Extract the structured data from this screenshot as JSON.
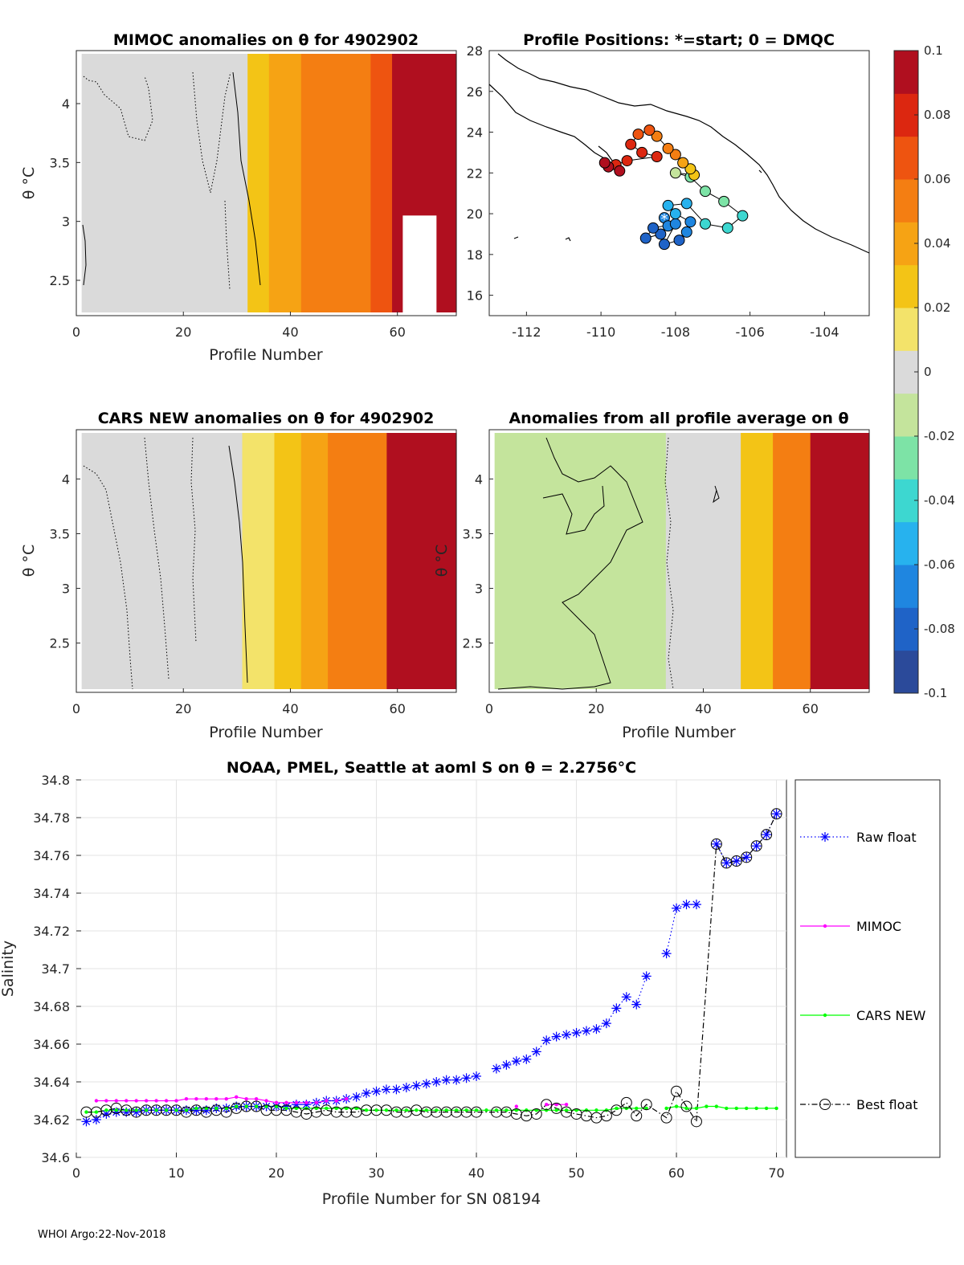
{
  "footer": "WHOI Argo:22-Nov-2018",
  "colormap": [
    "#2b4a9a",
    "#1f63c7",
    "#1f86e0",
    "#27b2ee",
    "#3dd7d0",
    "#7de3a6",
    "#c4e49c",
    "#dadada",
    "#f3e36a",
    "#f3c416",
    "#f6a314",
    "#f47e12",
    "#ee5410",
    "#dc2710",
    "#b00f1f"
  ],
  "chart_data": [
    {
      "type": "heatmap",
      "id": "mimoc",
      "title": "MIMOC anomalies on θ  for 4902902",
      "xlabel": "Profile Number",
      "ylabel": "θ °C",
      "xlim": [
        0,
        71
      ],
      "ylim": [
        2.2,
        4.45
      ],
      "xticks": [
        "0",
        "20",
        "40",
        "60"
      ],
      "yticks": [
        "2.5",
        "3",
        "3.5",
        "4"
      ],
      "columns": [
        {
          "from": 1,
          "to": 32,
          "anomaly": 0.0
        },
        {
          "from": 32,
          "to": 36,
          "anomaly": 0.03
        },
        {
          "from": 36,
          "to": 42,
          "anomaly": 0.035
        },
        {
          "from": 42,
          "to": 48,
          "anomaly": 0.05
        },
        {
          "from": 48,
          "to": 55,
          "anomaly": 0.06
        },
        {
          "from": 55,
          "to": 59,
          "anomaly": 0.07
        },
        {
          "from": 59,
          "to": 71,
          "anomaly": 0.1
        }
      ]
    },
    {
      "type": "scatter",
      "id": "positions",
      "title": "Profile Positions: *=start; 0 = DMQC",
      "xlim": [
        -113,
        -102.8
      ],
      "ylim": [
        15,
        28
      ],
      "xticks": [
        "-112",
        "-110",
        "-108",
        "-106",
        "-104"
      ],
      "yticks": [
        "16",
        "18",
        "20",
        "22",
        "24",
        "26",
        "28"
      ],
      "track": [
        {
          "lon": -108.3,
          "lat": 19.8,
          "anomaly": -0.07
        },
        {
          "lon": -108.2,
          "lat": 19.4,
          "anomaly": -0.07
        },
        {
          "lon": -108.4,
          "lat": 19.0,
          "anomaly": -0.08
        },
        {
          "lon": -108.8,
          "lat": 18.8,
          "anomaly": -0.08
        },
        {
          "lon": -108.6,
          "lat": 19.3,
          "anomaly": -0.075
        },
        {
          "lon": -108.0,
          "lat": 19.5,
          "anomaly": -0.07
        },
        {
          "lon": -108.3,
          "lat": 18.5,
          "anomaly": -0.08
        },
        {
          "lon": -107.9,
          "lat": 18.7,
          "anomaly": -0.075
        },
        {
          "lon": -107.7,
          "lat": 19.1,
          "anomaly": -0.07
        },
        {
          "lon": -107.6,
          "lat": 19.6,
          "anomaly": -0.065
        },
        {
          "lon": -108.0,
          "lat": 20.0,
          "anomaly": -0.06
        },
        {
          "lon": -108.2,
          "lat": 20.4,
          "anomaly": -0.055
        },
        {
          "lon": -107.7,
          "lat": 20.5,
          "anomaly": -0.05
        },
        {
          "lon": -107.2,
          "lat": 19.5,
          "anomaly": -0.045
        },
        {
          "lon": -106.6,
          "lat": 19.3,
          "anomaly": -0.04
        },
        {
          "lon": -106.2,
          "lat": 19.9,
          "anomaly": -0.035
        },
        {
          "lon": -106.7,
          "lat": 20.6,
          "anomaly": -0.03
        },
        {
          "lon": -107.2,
          "lat": 21.1,
          "anomaly": -0.025
        },
        {
          "lon": -107.6,
          "lat": 21.8,
          "anomaly": -0.02
        },
        {
          "lon": -108.0,
          "lat": 22.0,
          "anomaly": -0.015
        },
        {
          "lon": -107.5,
          "lat": 21.9,
          "anomaly": 0.02
        },
        {
          "lon": -107.6,
          "lat": 22.2,
          "anomaly": 0.03
        },
        {
          "lon": -107.8,
          "lat": 22.5,
          "anomaly": 0.04
        },
        {
          "lon": -108.0,
          "lat": 22.9,
          "anomaly": 0.05
        },
        {
          "lon": -108.2,
          "lat": 23.2,
          "anomaly": 0.055
        },
        {
          "lon": -108.5,
          "lat": 23.8,
          "anomaly": 0.06
        },
        {
          "lon": -108.7,
          "lat": 24.1,
          "anomaly": 0.065
        },
        {
          "lon": -109.0,
          "lat": 23.9,
          "anomaly": 0.07
        },
        {
          "lon": -109.2,
          "lat": 23.4,
          "anomaly": 0.075
        },
        {
          "lon": -108.9,
          "lat": 23.0,
          "anomaly": 0.075
        },
        {
          "lon": -108.5,
          "lat": 22.8,
          "anomaly": 0.08
        },
        {
          "lon": -109.3,
          "lat": 22.6,
          "anomaly": 0.08
        },
        {
          "lon": -109.6,
          "lat": 22.4,
          "anomaly": 0.085
        },
        {
          "lon": -109.8,
          "lat": 22.3,
          "anomaly": 0.09
        },
        {
          "lon": -109.9,
          "lat": 22.5,
          "anomaly": 0.095
        },
        {
          "lon": -109.5,
          "lat": 22.1,
          "anomaly": 0.1
        }
      ]
    },
    {
      "type": "heatmap",
      "id": "cars",
      "title": "CARS NEW anomalies on θ for 4902902",
      "xlabel": "Profile Number",
      "ylabel": "θ °C",
      "xlim": [
        0,
        71
      ],
      "ylim": [
        2.05,
        4.45
      ],
      "xticks": [
        "0",
        "20",
        "40",
        "60"
      ],
      "yticks": [
        "2.5",
        "3",
        "3.5",
        "4"
      ],
      "columns": [
        {
          "from": 1,
          "to": 31,
          "anomaly": 0.005
        },
        {
          "from": 31,
          "to": 37,
          "anomaly": 0.018
        },
        {
          "from": 37,
          "to": 42,
          "anomaly": 0.025
        },
        {
          "from": 42,
          "to": 47,
          "anomaly": 0.035
        },
        {
          "from": 47,
          "to": 53,
          "anomaly": 0.05
        },
        {
          "from": 53,
          "to": 58,
          "anomaly": 0.06
        },
        {
          "from": 58,
          "to": 71,
          "anomaly": 0.1
        }
      ]
    },
    {
      "type": "heatmap",
      "id": "allavg",
      "title": "Anomalies from all profile average on θ",
      "xlabel": "Profile Number",
      "ylabel": "θ °C",
      "xlim": [
        0,
        71
      ],
      "ylim": [
        2.05,
        4.45
      ],
      "xticks": [
        "0",
        "20",
        "40",
        "60"
      ],
      "yticks": [
        "2.5",
        "3",
        "3.5",
        "4"
      ],
      "columns": [
        {
          "from": 1,
          "to": 33,
          "anomaly": -0.012
        },
        {
          "from": 33,
          "to": 47,
          "anomaly": 0.0
        },
        {
          "from": 47,
          "to": 53,
          "anomaly": 0.03
        },
        {
          "from": 53,
          "to": 60,
          "anomaly": 0.06
        },
        {
          "from": 60,
          "to": 71,
          "anomaly": 0.1
        }
      ]
    },
    {
      "type": "colorbar",
      "id": "colorbar",
      "range": [
        -0.1,
        0.1
      ],
      "ticks": [
        "0.1",
        "0.08",
        "0.06",
        "0.04",
        "0.02",
        "0",
        "-0.02",
        "-0.04",
        "-0.06",
        "-0.08",
        "-0.1"
      ]
    },
    {
      "type": "line",
      "id": "salinity",
      "title": "NOAA, PMEL, Seattle at aoml S on θ = 2.2756°C",
      "xlabel": "Profile Number for SN 08194",
      "ylabel": "Salinity",
      "xlim": [
        0,
        71
      ],
      "ylim": [
        34.6,
        34.8
      ],
      "grid": true,
      "legend_position": "right-outside",
      "xticks": [
        "0",
        "10",
        "20",
        "30",
        "40",
        "50",
        "60",
        "70"
      ],
      "yticks": [
        "34.6",
        "34.62",
        "34.64",
        "34.66",
        "34.68",
        "34.7",
        "34.72",
        "34.74",
        "34.76",
        "34.78",
        "34.8"
      ],
      "x": [
        1,
        2,
        3,
        4,
        5,
        6,
        7,
        8,
        9,
        10,
        11,
        12,
        13,
        14,
        15,
        16,
        17,
        18,
        19,
        20,
        21,
        22,
        23,
        24,
        25,
        26,
        27,
        28,
        29,
        30,
        31,
        32,
        33,
        34,
        35,
        36,
        37,
        38,
        39,
        40,
        41,
        42,
        43,
        44,
        45,
        46,
        47,
        48,
        49,
        50,
        51,
        52,
        53,
        54,
        55,
        56,
        57,
        58,
        59,
        60,
        61,
        62,
        63,
        64,
        65,
        66,
        67,
        68,
        69,
        70
      ],
      "series": [
        {
          "name": "Raw float",
          "color": "#0000ff",
          "values": [
            34.619,
            34.62,
            34.623,
            34.624,
            34.624,
            34.624,
            34.625,
            34.625,
            34.625,
            34.625,
            34.625,
            34.625,
            34.625,
            34.626,
            34.626,
            34.627,
            34.627,
            34.627,
            34.627,
            34.627,
            34.627,
            34.628,
            34.628,
            34.629,
            34.63,
            34.63,
            34.631,
            34.632,
            34.634,
            34.635,
            34.636,
            34.636,
            34.637,
            34.638,
            34.639,
            34.64,
            34.641,
            34.641,
            34.642,
            34.643,
            null,
            34.647,
            34.649,
            34.651,
            34.652,
            34.656,
            34.662,
            34.664,
            34.665,
            34.666,
            34.667,
            34.668,
            34.671,
            34.679,
            34.685,
            34.681,
            34.696,
            null,
            34.708,
            34.732,
            34.734,
            34.734,
            null,
            34.766,
            34.756,
            34.757,
            34.759,
            34.765,
            34.771,
            34.782
          ]
        },
        {
          "name": "MIMOC",
          "color": "#ff00ff",
          "values": [
            null,
            34.63,
            34.63,
            34.63,
            34.63,
            34.63,
            34.63,
            34.63,
            34.63,
            34.63,
            34.631,
            34.631,
            34.631,
            34.631,
            34.631,
            34.632,
            34.631,
            34.631,
            34.63,
            34.629,
            34.629,
            34.629,
            34.629,
            34.629,
            34.63,
            34.63,
            34.631,
            null,
            null,
            null,
            null,
            null,
            null,
            null,
            null,
            null,
            null,
            null,
            null,
            null,
            null,
            null,
            null,
            34.627,
            null,
            null,
            34.628,
            34.628,
            34.628,
            null,
            null,
            null,
            null,
            null,
            null,
            null,
            null,
            null,
            null,
            null,
            null,
            null,
            null,
            null,
            null,
            null,
            null,
            null,
            null,
            null
          ]
        },
        {
          "name": "CARS NEW",
          "color": "#00ff00",
          "values": [
            34.624,
            34.624,
            34.625,
            34.625,
            34.625,
            34.625,
            34.625,
            34.625,
            34.625,
            34.625,
            34.625,
            34.626,
            34.626,
            34.626,
            34.626,
            34.627,
            34.627,
            34.627,
            34.627,
            34.627,
            34.626,
            34.626,
            34.626,
            34.626,
            34.626,
            34.626,
            34.626,
            34.626,
            34.625,
            34.625,
            34.625,
            34.625,
            34.625,
            34.625,
            34.625,
            34.625,
            34.625,
            34.625,
            34.625,
            34.625,
            34.625,
            34.625,
            34.625,
            34.625,
            34.625,
            34.625,
            34.625,
            34.625,
            34.625,
            34.625,
            34.625,
            34.625,
            34.625,
            34.626,
            34.626,
            34.626,
            34.626,
            null,
            34.626,
            34.627,
            34.626,
            34.626,
            34.627,
            34.627,
            34.626,
            34.626,
            34.626,
            34.626,
            34.626,
            34.626
          ]
        },
        {
          "name": "Best float",
          "color": "#000000",
          "values": [
            34.624,
            34.624,
            34.625,
            34.626,
            34.625,
            34.624,
            34.625,
            34.625,
            34.625,
            34.625,
            34.624,
            34.625,
            34.624,
            34.625,
            34.624,
            34.626,
            34.627,
            34.627,
            34.625,
            34.625,
            34.625,
            34.624,
            34.623,
            34.624,
            34.625,
            34.624,
            34.624,
            34.624,
            34.625,
            34.625,
            34.625,
            34.624,
            34.624,
            34.625,
            34.624,
            34.624,
            34.624,
            34.624,
            34.624,
            34.624,
            null,
            34.624,
            34.624,
            34.623,
            34.622,
            34.623,
            34.628,
            34.626,
            34.624,
            34.623,
            34.622,
            34.621,
            34.622,
            34.625,
            34.629,
            34.622,
            34.628,
            null,
            34.621,
            34.635,
            34.627,
            34.619,
            null,
            34.766,
            34.756,
            34.757,
            34.759,
            34.765,
            34.771,
            34.782
          ]
        }
      ]
    }
  ]
}
